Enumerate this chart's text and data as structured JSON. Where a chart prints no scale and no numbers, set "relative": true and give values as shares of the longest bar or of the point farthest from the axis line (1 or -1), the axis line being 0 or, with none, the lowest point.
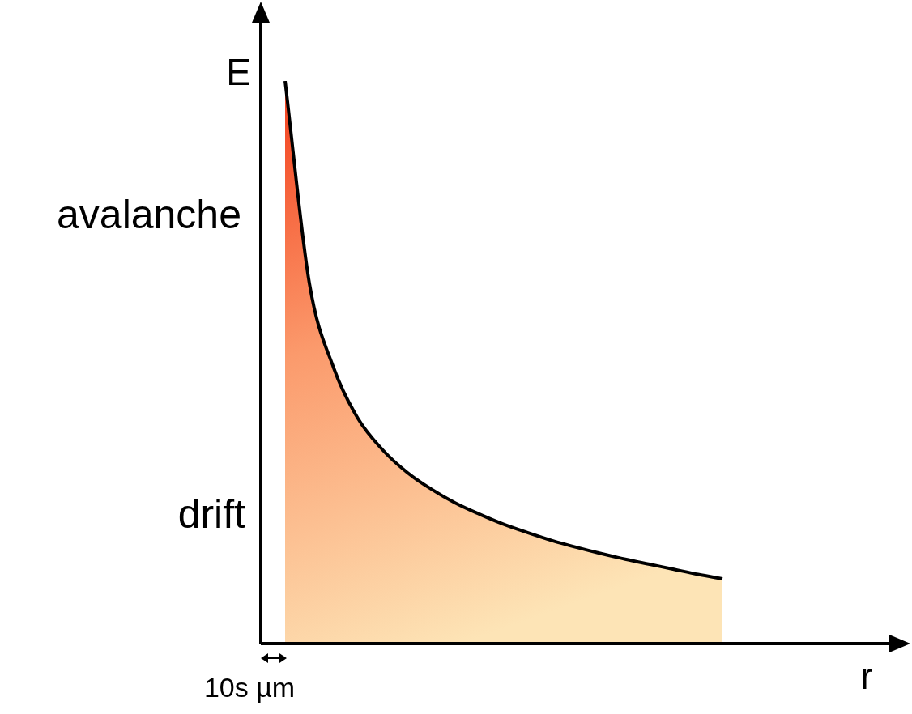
{
  "chart_data": {
    "type": "area",
    "relative": true,
    "xlabel": "r",
    "ylabel": "E",
    "categories": [
      null,
      null,
      null,
      null,
      null,
      null,
      null,
      null,
      null,
      null,
      null,
      null,
      null,
      null,
      null,
      null,
      null,
      null,
      null,
      null,
      null,
      null,
      null,
      null,
      null,
      null,
      null
    ],
    "series": [
      {
        "color": "#fde4b6",
        "values": [
          null,
          1,
          0.64,
          0.49,
          0.4,
          0.345,
          0.305,
          0.275,
          0.25,
          0.23,
          0.212,
          0.197,
          0.183,
          0.171,
          0.16,
          0.15,
          0.141,
          0.132,
          0.123,
          0.115,
          null,
          null,
          null,
          null,
          null,
          null,
          null
        ]
      }
    ],
    "annotations": [
      "avalanche",
      "drift",
      "10s µm"
    ],
    "legend": false,
    "marker": "none"
  }
}
